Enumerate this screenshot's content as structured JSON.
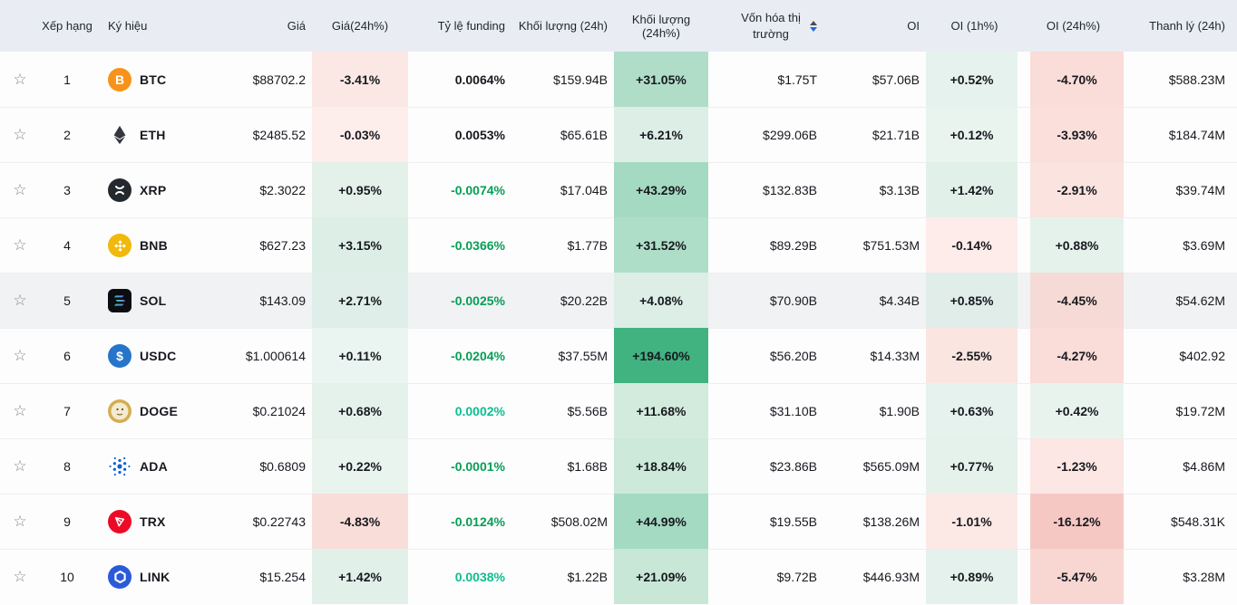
{
  "table": {
    "columns": [
      {
        "key": "fav",
        "label": ""
      },
      {
        "key": "rank",
        "label": "Xếp hạng"
      },
      {
        "key": "symbol",
        "label": "Ký hiệu"
      },
      {
        "key": "price",
        "label": "Giá"
      },
      {
        "key": "price_24h",
        "label": "Giá(24h%)"
      },
      {
        "key": "funding",
        "label": "Tỷ lệ funding"
      },
      {
        "key": "volume_24h",
        "label": "Khối lượng (24h)"
      },
      {
        "key": "volume_24h_pct",
        "label": "Khối lượng (24h%)"
      },
      {
        "key": "market_cap",
        "label": "Vốn hóa thị trường",
        "sorted": "desc"
      },
      {
        "key": "oi",
        "label": "OI"
      },
      {
        "key": "oi_1h",
        "label": "OI (1h%)"
      },
      {
        "key": "oi_24h",
        "label": "OI (24h%)"
      },
      {
        "key": "liquidation",
        "label": "Thanh lý (24h)"
      }
    ],
    "rows": [
      {
        "rank": "1",
        "symbol": "BTC",
        "icon": {
          "type": "btc",
          "bg": "#f7931a",
          "fg": "#ffffff",
          "glyph": "B"
        },
        "price": "$88702.2",
        "price_24h": {
          "text": "-3.41%",
          "bg": "#fbe8e5"
        },
        "funding": {
          "text": "0.0064%",
          "color": "#17191e"
        },
        "volume_24h": "$159.94B",
        "volume_24h_pct": {
          "text": "+31.05%",
          "bg": "#b0ddc8"
        },
        "market_cap": "$1.75T",
        "oi": "$57.06B",
        "oi_1h": {
          "text": "+0.52%",
          "bg": "#e6f2ed"
        },
        "oi_24h": {
          "text": "-4.70%",
          "bg": "#fadcd8"
        },
        "liquidation": "$588.23M",
        "highlight": false
      },
      {
        "rank": "2",
        "symbol": "ETH",
        "icon": {
          "type": "eth",
          "bg": "none",
          "fg": "#33363c",
          "glyph": ""
        },
        "price": "$2485.52",
        "price_24h": {
          "text": "-0.03%",
          "bg": "#fdeeec"
        },
        "funding": {
          "text": "0.0053%",
          "color": "#17191e"
        },
        "volume_24h": "$65.61B",
        "volume_24h_pct": {
          "text": "+6.21%",
          "bg": "#ddeee6"
        },
        "market_cap": "$299.06B",
        "oi": "$21.71B",
        "oi_1h": {
          "text": "+0.12%",
          "bg": "#e9f4ef"
        },
        "oi_24h": {
          "text": "-3.93%",
          "bg": "#fadfdb"
        },
        "liquidation": "$184.74M",
        "highlight": false
      },
      {
        "rank": "3",
        "symbol": "XRP",
        "icon": {
          "type": "xrp",
          "bg": "#23292f",
          "fg": "#ffffff",
          "glyph": ""
        },
        "price": "$2.3022",
        "price_24h": {
          "text": "+0.95%",
          "bg": "#e4f1ea"
        },
        "funding": {
          "text": "-0.0074%",
          "color": "#079e55"
        },
        "volume_24h": "$17.04B",
        "volume_24h_pct": {
          "text": "+43.29%",
          "bg": "#a5dac2"
        },
        "market_cap": "$132.83B",
        "oi": "$3.13B",
        "oi_1h": {
          "text": "+1.42%",
          "bg": "#e2f0ea"
        },
        "oi_24h": {
          "text": "-2.91%",
          "bg": "#fbe3df"
        },
        "liquidation": "$39.74M",
        "highlight": false
      },
      {
        "rank": "4",
        "symbol": "BNB",
        "icon": {
          "type": "bnb",
          "bg": "#f0b90b",
          "fg": "#ffffff",
          "glyph": ""
        },
        "price": "$627.23",
        "price_24h": {
          "text": "+3.15%",
          "bg": "#ddeee7"
        },
        "funding": {
          "text": "-0.0366%",
          "color": "#079e55"
        },
        "volume_24h": "$1.77B",
        "volume_24h_pct": {
          "text": "+31.52%",
          "bg": "#aedec7"
        },
        "market_cap": "$89.29B",
        "oi": "$751.53M",
        "oi_1h": {
          "text": "-0.14%",
          "bg": "#fdecea"
        },
        "oi_24h": {
          "text": "+0.88%",
          "bg": "#e5f2ec"
        },
        "liquidation": "$3.69M",
        "highlight": false
      },
      {
        "rank": "5",
        "symbol": "SOL",
        "icon": {
          "type": "sol",
          "bg": "#0c0d12",
          "fg": "#ffffff",
          "glyph": ""
        },
        "price": "$143.09",
        "price_24h": {
          "text": "+2.71%",
          "bg": "#dfeee8"
        },
        "funding": {
          "text": "-0.0025%",
          "color": "#079e55"
        },
        "volume_24h": "$20.22B",
        "volume_24h_pct": {
          "text": "+4.08%",
          "bg": "#ddeee6"
        },
        "market_cap": "$70.90B",
        "oi": "$4.34B",
        "oi_1h": {
          "text": "+0.85%",
          "bg": "#e0ede9"
        },
        "oi_24h": {
          "text": "-4.45%",
          "bg": "#f6dad6"
        },
        "liquidation": "$54.62M",
        "highlight": true
      },
      {
        "rank": "6",
        "symbol": "USDC",
        "icon": {
          "type": "usdc",
          "bg": "#2775ca",
          "fg": "#ffffff",
          "glyph": "$"
        },
        "price": "$1.000614",
        "price_24h": {
          "text": "+0.11%",
          "bg": "#eaf4f0"
        },
        "funding": {
          "text": "-0.0204%",
          "color": "#079e55"
        },
        "volume_24h": "$37.55M",
        "volume_24h_pct": {
          "text": "+194.60%",
          "bg": "#41b381"
        },
        "market_cap": "$56.20B",
        "oi": "$14.33M",
        "oi_1h": {
          "text": "-2.55%",
          "bg": "#fbe5e1"
        },
        "oi_24h": {
          "text": "-4.27%",
          "bg": "#fadcd9"
        },
        "liquidation": "$402.92",
        "highlight": false
      },
      {
        "rank": "7",
        "symbol": "DOGE",
        "icon": {
          "type": "doge",
          "bg": "#d4ad52",
          "fg": "#f4ead0",
          "glyph": ""
        },
        "price": "$0.21024",
        "price_24h": {
          "text": "+0.68%",
          "bg": "#e5f2ec"
        },
        "funding": {
          "text": "0.0002%",
          "color": "#0ebd8f"
        },
        "volume_24h": "$5.56B",
        "volume_24h_pct": {
          "text": "+11.68%",
          "bg": "#d2ebdd"
        },
        "market_cap": "$31.10B",
        "oi": "$1.90B",
        "oi_1h": {
          "text": "+0.63%",
          "bg": "#e6f2ed"
        },
        "oi_24h": {
          "text": "+0.42%",
          "bg": "#e8f3ee"
        },
        "liquidation": "$19.72M",
        "highlight": false
      },
      {
        "rank": "8",
        "symbol": "ADA",
        "icon": {
          "type": "ada",
          "bg": "#ffffff",
          "fg": "#0d5fd8",
          "glyph": ""
        },
        "price": "$0.6809",
        "price_24h": {
          "text": "+0.22%",
          "bg": "#e9f4ef"
        },
        "funding": {
          "text": "-0.0001%",
          "color": "#079e55"
        },
        "volume_24h": "$1.68B",
        "volume_24h_pct": {
          "text": "+18.84%",
          "bg": "#cce9da"
        },
        "market_cap": "$23.86B",
        "oi": "$565.09M",
        "oi_1h": {
          "text": "+0.77%",
          "bg": "#e5f2ec"
        },
        "oi_24h": {
          "text": "-1.23%",
          "bg": "#fce7e4"
        },
        "liquidation": "$4.86M",
        "highlight": false
      },
      {
        "rank": "9",
        "symbol": "TRX",
        "icon": {
          "type": "trx",
          "bg": "#ec0b27",
          "fg": "#ffffff",
          "glyph": ""
        },
        "price": "$0.22743",
        "price_24h": {
          "text": "-4.83%",
          "bg": "#f9ddd9"
        },
        "funding": {
          "text": "-0.0124%",
          "color": "#079e55"
        },
        "volume_24h": "$508.02M",
        "volume_24h_pct": {
          "text": "+44.99%",
          "bg": "#a4dac2"
        },
        "market_cap": "$19.55B",
        "oi": "$138.26M",
        "oi_1h": {
          "text": "-1.01%",
          "bg": "#fce8e5"
        },
        "oi_24h": {
          "text": "-16.12%",
          "bg": "#f6c8c4"
        },
        "liquidation": "$548.31K",
        "highlight": false
      },
      {
        "rank": "10",
        "symbol": "LINK",
        "icon": {
          "type": "link",
          "bg": "#2a5ada",
          "fg": "#ffffff",
          "glyph": ""
        },
        "price": "$15.254",
        "price_24h": {
          "text": "+1.42%",
          "bg": "#e2f0ea"
        },
        "funding": {
          "text": "0.0038%",
          "color": "#0ebd8f"
        },
        "volume_24h": "$1.22B",
        "volume_24h_pct": {
          "text": "+21.09%",
          "bg": "#c8e7d7"
        },
        "market_cap": "$9.72B",
        "oi": "$446.93M",
        "oi_1h": {
          "text": "+0.89%",
          "bg": "#e4f1ec"
        },
        "oi_24h": {
          "text": "-5.47%",
          "bg": "#f8d7d3"
        },
        "liquidation": "$3.28M",
        "highlight": false
      }
    ]
  },
  "icons": {
    "favorite": "☆"
  },
  "colors": {
    "header_bg": "#e9edf3",
    "row_bg": "#fdfdfe",
    "row_highlight_bg": "#f1f2f4",
    "row_border": "#efeff2",
    "text": "#17191e",
    "funding_green": "#079e55",
    "funding_teal": "#0ebd8f",
    "sort_up": "#474d57",
    "sort_down_active": "#1a6be0"
  }
}
